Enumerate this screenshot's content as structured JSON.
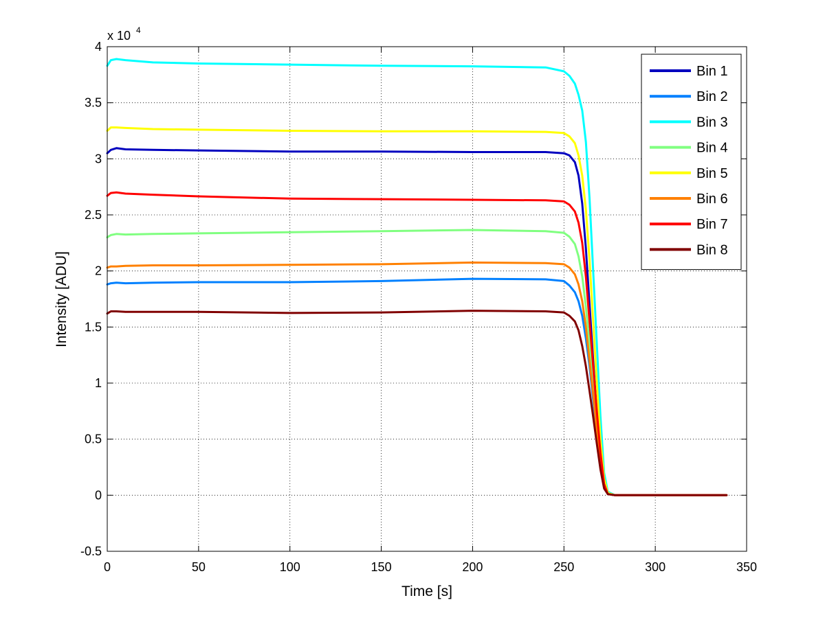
{
  "chart_data": {
    "type": "line",
    "title": "",
    "xlabel": "Time [s]",
    "ylabel": "Intensity [ADU]",
    "xlim": [
      0,
      350
    ],
    "ylim": [
      -5000,
      40000
    ],
    "x_ticks": [
      0,
      50,
      100,
      150,
      200,
      250,
      300,
      350
    ],
    "x_tick_labels": [
      "0",
      "50",
      "100",
      "150",
      "200",
      "250",
      "300",
      "350"
    ],
    "y_ticks": [
      -5000,
      0,
      5000,
      10000,
      15000,
      20000,
      25000,
      30000,
      35000,
      40000
    ],
    "y_tick_labels": [
      "-0.5",
      "0",
      "0.5",
      "1",
      "1.5",
      "2",
      "2.5",
      "3",
      "3.5",
      "4"
    ],
    "y_multiplier": "x 10",
    "y_multiplier_exponent": "4",
    "grid": true,
    "grid_style": "dotted",
    "legend_position": "top-right",
    "series": [
      {
        "name": "Bin 1",
        "color": "#0000bf",
        "x": [
          0,
          2,
          5,
          10,
          25,
          50,
          100,
          150,
          200,
          240,
          250,
          253,
          256,
          258,
          260,
          262,
          264,
          266,
          268,
          270,
          272,
          274,
          278,
          300,
          339
        ],
        "y": [
          30500,
          30800,
          30950,
          30850,
          30800,
          30750,
          30650,
          30650,
          30600,
          30600,
          30500,
          30300,
          29700,
          28500,
          26000,
          22000,
          17000,
          12000,
          7500,
          3500,
          800,
          100,
          0,
          0,
          0
        ]
      },
      {
        "name": "Bin 2",
        "color": "#0080ff",
        "x": [
          0,
          2,
          5,
          10,
          25,
          50,
          100,
          150,
          200,
          240,
          250,
          253,
          256,
          258,
          260,
          262,
          264,
          266,
          268,
          270,
          272,
          274,
          278,
          300,
          339
        ],
        "y": [
          18800,
          18900,
          18950,
          18900,
          18950,
          19000,
          19000,
          19100,
          19300,
          19250,
          19100,
          18700,
          18100,
          17300,
          16000,
          14000,
          11500,
          8500,
          5500,
          2800,
          700,
          100,
          0,
          0,
          0
        ]
      },
      {
        "name": "Bin 3",
        "color": "#00ffff",
        "x": [
          0,
          2,
          5,
          10,
          25,
          50,
          100,
          150,
          200,
          240,
          250,
          253,
          256,
          258,
          260,
          262,
          264,
          266,
          268,
          270,
          272,
          274,
          278,
          300,
          339
        ],
        "y": [
          38300,
          38800,
          38900,
          38800,
          38600,
          38500,
          38400,
          38300,
          38250,
          38150,
          37800,
          37400,
          36700,
          35700,
          34300,
          31500,
          26500,
          20000,
          13500,
          7000,
          2000,
          300,
          0,
          0,
          0
        ]
      },
      {
        "name": "Bin 4",
        "color": "#80ff80",
        "x": [
          0,
          2,
          5,
          10,
          25,
          50,
          100,
          150,
          200,
          240,
          250,
          253,
          256,
          258,
          260,
          262,
          264,
          266,
          268,
          270,
          272,
          274,
          278,
          300,
          339
        ],
        "y": [
          23000,
          23200,
          23300,
          23250,
          23300,
          23350,
          23450,
          23550,
          23650,
          23550,
          23400,
          23050,
          22400,
          21300,
          19500,
          16800,
          13500,
          10000,
          6500,
          3300,
          900,
          100,
          0,
          0,
          0
        ]
      },
      {
        "name": "Bin 5",
        "color": "#ffff00",
        "x": [
          0,
          2,
          5,
          10,
          25,
          50,
          100,
          150,
          200,
          240,
          250,
          253,
          256,
          258,
          260,
          262,
          264,
          266,
          268,
          270,
          272,
          274,
          278,
          300,
          339
        ],
        "y": [
          32500,
          32800,
          32800,
          32750,
          32650,
          32600,
          32500,
          32450,
          32450,
          32400,
          32300,
          32000,
          31400,
          30300,
          28500,
          25500,
          21000,
          15500,
          10000,
          5000,
          1500,
          200,
          0,
          0,
          0
        ]
      },
      {
        "name": "Bin 6",
        "color": "#ff8000",
        "x": [
          0,
          2,
          5,
          10,
          25,
          50,
          100,
          150,
          200,
          240,
          250,
          253,
          256,
          258,
          260,
          262,
          264,
          266,
          268,
          270,
          272,
          274,
          278,
          300,
          339
        ],
        "y": [
          20300,
          20400,
          20400,
          20450,
          20500,
          20500,
          20550,
          20600,
          20750,
          20700,
          20600,
          20300,
          19700,
          18800,
          17300,
          15000,
          12000,
          9000,
          5800,
          2900,
          800,
          100,
          0,
          0,
          0
        ]
      },
      {
        "name": "Bin 7",
        "color": "#ff0000",
        "x": [
          0,
          2,
          5,
          10,
          25,
          50,
          100,
          150,
          200,
          240,
          250,
          253,
          256,
          258,
          260,
          262,
          264,
          266,
          268,
          270,
          272,
          274,
          278,
          300,
          339
        ],
        "y": [
          26700,
          26950,
          27000,
          26900,
          26800,
          26650,
          26450,
          26400,
          26350,
          26300,
          26200,
          25900,
          25300,
          24300,
          22500,
          19500,
          15500,
          11500,
          7500,
          3800,
          1000,
          100,
          0,
          0,
          0
        ]
      },
      {
        "name": "Bin 8",
        "color": "#800000",
        "x": [
          0,
          2,
          5,
          10,
          25,
          50,
          100,
          150,
          200,
          240,
          250,
          253,
          256,
          258,
          260,
          262,
          264,
          266,
          268,
          270,
          272,
          274,
          278,
          300,
          339
        ],
        "y": [
          16200,
          16400,
          16400,
          16350,
          16350,
          16350,
          16250,
          16300,
          16450,
          16400,
          16300,
          16000,
          15500,
          14700,
          13300,
          11500,
          9300,
          7000,
          4600,
          2300,
          600,
          100,
          0,
          0,
          0
        ]
      }
    ]
  }
}
